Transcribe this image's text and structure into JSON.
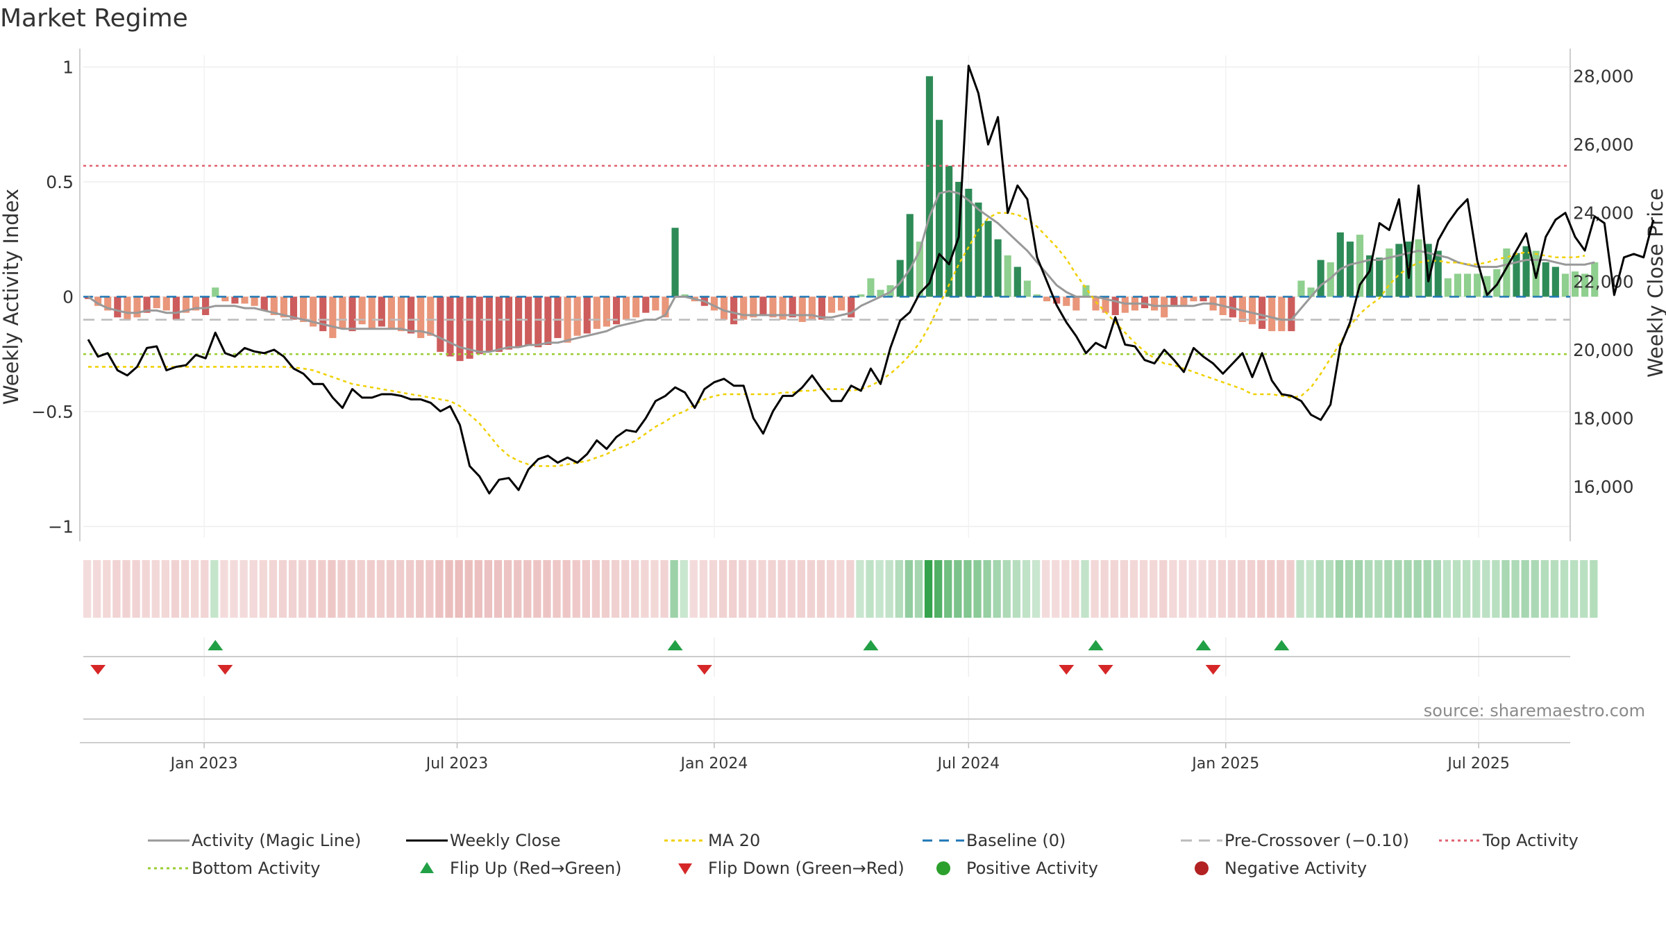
{
  "title": "Market Regime",
  "source": "source: sharemaestro.com",
  "colors": {
    "pos_dark": "#2e8b57",
    "pos_light": "#8fcf8f",
    "neg_dark": "#cd5c5c",
    "neg_light": "#e9967a",
    "magic": "#999999",
    "close": "#000000",
    "ma": "#f0d000",
    "baseline": "#1f77b4",
    "pre": "#bbbbbb",
    "top": "#e06070",
    "bottom": "#9acd32",
    "flip_up": "#22a046",
    "flip_down": "#d62728",
    "pos_dot": "#2ca02c",
    "neg_dot": "#b22222"
  },
  "chart_data": {
    "type": "bar",
    "start_week": "2022-10-10",
    "weeks": 152,
    "left_axis": {
      "label": "Weekly Activity Index",
      "ylim": [
        -1.05,
        1.05
      ],
      "ticks": [
        -1,
        -0.5,
        0,
        0.5,
        1
      ],
      "tick_labels": [
        "−1",
        "−0.5",
        "0",
        "0.5",
        "1"
      ]
    },
    "right_axis": {
      "label": "Weekly Close Price",
      "ylim": [
        14500,
        28600
      ],
      "ticks": [
        16000,
        18000,
        20000,
        22000,
        24000,
        26000,
        28000
      ],
      "tick_labels": [
        "16,000",
        "18,000",
        "20,000",
        "22,000",
        "24,000",
        "26,000",
        "28,000"
      ]
    },
    "x_ticks": [
      {
        "label": "Jan 2023",
        "date": "2023-01-01"
      },
      {
        "label": "Jul 2023",
        "date": "2023-07-01"
      },
      {
        "label": "Jan 2024",
        "date": "2024-01-01"
      },
      {
        "label": "Jul 2024",
        "date": "2024-07-01"
      },
      {
        "label": "Jan 2025",
        "date": "2025-01-01"
      },
      {
        "label": "Jul 2025",
        "date": "2025-07-01"
      }
    ],
    "reference_lines": {
      "baseline": 0,
      "pre_crossover": -0.1,
      "top_activity": 0.57,
      "bottom_activity": -0.25
    },
    "activity": [
      -0.01,
      -0.04,
      -0.06,
      -0.09,
      -0.1,
      -0.09,
      -0.07,
      -0.05,
      -0.06,
      -0.1,
      -0.07,
      -0.06,
      -0.08,
      0.04,
      -0.02,
      -0.03,
      -0.03,
      -0.04,
      -0.06,
      -0.08,
      -0.09,
      -0.1,
      -0.11,
      -0.13,
      -0.15,
      -0.18,
      -0.14,
      -0.15,
      -0.12,
      -0.14,
      -0.13,
      -0.14,
      -0.15,
      -0.16,
      -0.18,
      -0.17,
      -0.24,
      -0.26,
      -0.28,
      -0.27,
      -0.25,
      -0.24,
      -0.24,
      -0.23,
      -0.22,
      -0.21,
      -0.22,
      -0.21,
      -0.18,
      -0.2,
      -0.17,
      -0.16,
      -0.14,
      -0.13,
      -0.12,
      -0.1,
      -0.09,
      -0.07,
      -0.06,
      -0.09,
      0.3,
      0.01,
      -0.02,
      -0.04,
      -0.06,
      -0.1,
      -0.12,
      -0.1,
      -0.09,
      -0.08,
      -0.09,
      -0.1,
      -0.09,
      -0.11,
      -0.1,
      -0.1,
      -0.07,
      -0.06,
      -0.09,
      0.01,
      0.08,
      0.03,
      0.05,
      0.16,
      0.36,
      0.24,
      0.96,
      0.77,
      0.57,
      0.5,
      0.47,
      0.41,
      0.33,
      0.25,
      0.18,
      0.13,
      0.07,
      0.01,
      -0.02,
      -0.03,
      -0.04,
      -0.06,
      0.05,
      -0.06,
      -0.07,
      -0.08,
      -0.07,
      -0.06,
      -0.05,
      -0.06,
      -0.09,
      -0.04,
      -0.04,
      -0.02,
      -0.02,
      -0.06,
      -0.08,
      -0.09,
      -0.11,
      -0.12,
      -0.14,
      -0.15,
      -0.15,
      -0.15,
      0.07,
      0.04,
      0.16,
      0.15,
      0.28,
      0.24,
      0.27,
      0.18,
      0.17,
      0.21,
      0.23,
      0.24,
      0.25,
      0.23,
      0.2,
      0.08,
      0.1,
      0.1,
      0.1,
      0.09,
      0.12,
      0.21,
      0.19,
      0.22,
      0.2,
      0.15,
      0.13,
      0.1,
      0.11,
      0.1,
      0.15
    ],
    "magic_line": [
      0,
      -0.03,
      -0.05,
      -0.06,
      -0.07,
      -0.07,
      -0.06,
      -0.06,
      -0.07,
      -0.07,
      -0.06,
      -0.05,
      -0.05,
      -0.04,
      -0.04,
      -0.04,
      -0.05,
      -0.05,
      -0.06,
      -0.07,
      -0.08,
      -0.09,
      -0.1,
      -0.11,
      -0.12,
      -0.13,
      -0.14,
      -0.14,
      -0.14,
      -0.14,
      -0.14,
      -0.14,
      -0.14,
      -0.15,
      -0.15,
      -0.16,
      -0.18,
      -0.2,
      -0.22,
      -0.23,
      -0.24,
      -0.24,
      -0.23,
      -0.22,
      -0.22,
      -0.21,
      -0.21,
      -0.2,
      -0.2,
      -0.19,
      -0.18,
      -0.17,
      -0.16,
      -0.15,
      -0.13,
      -0.12,
      -0.11,
      -0.1,
      -0.1,
      -0.08,
      0,
      0,
      -0.01,
      -0.02,
      -0.04,
      -0.06,
      -0.07,
      -0.08,
      -0.08,
      -0.08,
      -0.08,
      -0.08,
      -0.08,
      -0.08,
      -0.08,
      -0.09,
      -0.09,
      -0.08,
      -0.07,
      -0.04,
      -0.02,
      0,
      0.02,
      0.06,
      0.12,
      0.2,
      0.35,
      0.45,
      0.46,
      0.45,
      0.42,
      0.38,
      0.35,
      0.32,
      0.28,
      0.24,
      0.2,
      0.15,
      0.1,
      0.05,
      0.02,
      0,
      0,
      0,
      -0.01,
      -0.02,
      -0.03,
      -0.03,
      -0.03,
      -0.04,
      -0.04,
      -0.04,
      -0.04,
      -0.04,
      -0.03,
      -0.03,
      -0.04,
      -0.05,
      -0.06,
      -0.07,
      -0.08,
      -0.09,
      -0.1,
      -0.1,
      -0.05,
      0,
      0.05,
      0.08,
      0.12,
      0.14,
      0.15,
      0.16,
      0.16,
      0.17,
      0.18,
      0.19,
      0.2,
      0.19,
      0.18,
      0.17,
      0.15,
      0.14,
      0.13,
      0.13,
      0.13,
      0.14,
      0.15,
      0.16,
      0.16,
      0.16,
      0.15,
      0.14,
      0.14,
      0.14,
      0.15
    ],
    "weekly_close": [
      20300,
      19800,
      19900,
      19400,
      19250,
      19500,
      20050,
      20100,
      19400,
      19500,
      19550,
      19850,
      19750,
      20500,
      19900,
      19800,
      20050,
      19950,
      19900,
      20000,
      19800,
      19450,
      19300,
      19000,
      19000,
      18600,
      18300,
      18850,
      18600,
      18600,
      18700,
      18700,
      18650,
      18550,
      18550,
      18450,
      18200,
      18350,
      17800,
      16600,
      16300,
      15800,
      16200,
      16250,
      15900,
      16500,
      16800,
      16900,
      16700,
      16850,
      16700,
      16950,
      17350,
      17100,
      17450,
      17650,
      17600,
      18000,
      18500,
      18650,
      18900,
      18750,
      18300,
      18850,
      19050,
      19150,
      18950,
      18950,
      18000,
      17550,
      18200,
      18650,
      18650,
      18900,
      19250,
      18850,
      18500,
      18500,
      18950,
      18800,
      19450,
      19000,
      20050,
      20850,
      21100,
      21650,
      21950,
      22800,
      22500,
      23300,
      28300,
      27500,
      26000,
      26800,
      24000,
      24800,
      24400,
      22700,
      22000,
      21300,
      20800,
      20400,
      19900,
      20200,
      20050,
      20950,
      20150,
      20100,
      19700,
      19600,
      20000,
      19700,
      19350,
      20050,
      19800,
      19600,
      19300,
      19600,
      19900,
      19200,
      19900,
      19100,
      18700,
      18650,
      18500,
      18100,
      17950,
      18400,
      20100,
      20800,
      21900,
      22300,
      23700,
      23500,
      24400,
      22100,
      24800,
      22000,
      23200,
      23700,
      24100,
      24400,
      22600,
      21600,
      21900,
      22400,
      22900,
      23400,
      22100,
      23300,
      23800,
      24000,
      23300,
      22900,
      23900,
      23700,
      21600,
      22700,
      22800,
      22700,
      23800
    ],
    "ma20": [
      19500,
      19500,
      19500,
      19500,
      19500,
      19500,
      19500,
      19500,
      19500,
      19500,
      19500,
      19500,
      19500,
      19500,
      19500,
      19500,
      19500,
      19500,
      19500,
      19500,
      19500,
      19480,
      19450,
      19400,
      19300,
      19200,
      19100,
      19000,
      18950,
      18900,
      18850,
      18800,
      18750,
      18700,
      18650,
      18600,
      18550,
      18500,
      18350,
      18100,
      17850,
      17500,
      17150,
      16900,
      16750,
      16650,
      16600,
      16600,
      16600,
      16650,
      16700,
      16750,
      16850,
      16950,
      17100,
      17200,
      17350,
      17550,
      17750,
      17900,
      18100,
      18200,
      18400,
      18550,
      18650,
      18700,
      18700,
      18700,
      18700,
      18700,
      18700,
      18750,
      18750,
      18800,
      18800,
      18850,
      18850,
      18850,
      18800,
      18850,
      18950,
      19100,
      19300,
      19550,
      19850,
      20200,
      20700,
      21300,
      21900,
      22500,
      23000,
      23500,
      23850,
      24000,
      24000,
      23950,
      23800,
      23600,
      23300,
      23000,
      22650,
      22200,
      21800,
      21400,
      21100,
      20800,
      20500,
      20200,
      19950,
      19750,
      19600,
      19550,
      19450,
      19350,
      19250,
      19150,
      19050,
      18950,
      18850,
      18700,
      18700,
      18700,
      18650,
      18600,
      18650,
      18900,
      19300,
      19750,
      20200,
      20700,
      21050,
      21300,
      21500,
      21900,
      22200,
      22400,
      22550,
      22600,
      22600,
      22550,
      22550,
      22500,
      22500,
      22550,
      22650,
      22700,
      22800,
      22850,
      22800,
      22750,
      22700,
      22700,
      22700,
      22750
    ],
    "flip_up_weeks": [
      13,
      60,
      80,
      103,
      114,
      122
    ],
    "flip_down_weeks": [
      1,
      14,
      63,
      100,
      104,
      115
    ]
  },
  "legend": [
    {
      "key": "line-magic",
      "label": "Activity (Magic Line)"
    },
    {
      "key": "line-close",
      "label": "Weekly Close"
    },
    {
      "key": "line-ma",
      "label": "MA 20"
    },
    {
      "key": "line-baseline",
      "label": "Baseline (0)"
    },
    {
      "key": "line-pre",
      "label": "Pre-Crossover (−0.10)"
    },
    {
      "key": "line-top",
      "label": "Top Activity"
    },
    {
      "key": "line-bottom",
      "label": "Bottom Activity"
    },
    {
      "key": "tri-up",
      "label": "Flip Up (Red→Green)"
    },
    {
      "key": "tri-down",
      "label": "Flip Down (Green→Red)"
    },
    {
      "key": "dot-pos",
      "label": "Positive Activity"
    },
    {
      "key": "dot-neg",
      "label": "Negative Activity"
    }
  ]
}
